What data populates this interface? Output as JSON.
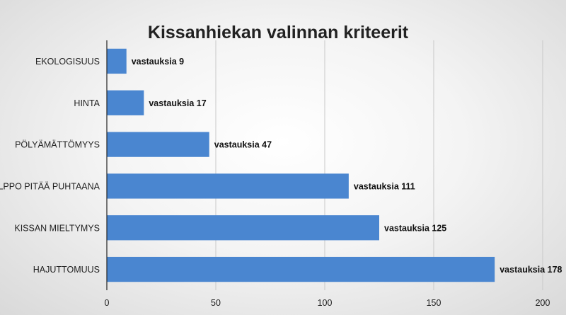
{
  "chart_data": {
    "type": "bar",
    "orientation": "horizontal",
    "title": "Kissanhiekan valinnan kriteerit",
    "categories": [
      "EKOLOGISUUS",
      "HINTA",
      "PÖLYÄMÄTTÖMYYS",
      "HELPPO PITÄÄ PUHTAANA",
      "KISSAN MIELTYMYS",
      "HAJUTTOMUUS"
    ],
    "values": [
      9,
      17,
      47,
      111,
      125,
      178
    ],
    "data_labels": [
      "vastauksia 9",
      "vastauksia 17",
      "vastauksia 47",
      "vastauksia 111",
      "vastauksia 125",
      "vastauksia 178"
    ],
    "xlim": [
      0,
      200
    ],
    "xticks": [
      0,
      50,
      100,
      150,
      200
    ],
    "xtick_labels": [
      "0",
      "50",
      "100",
      "150",
      "200"
    ],
    "grid": true,
    "bar_color": "#4a86d0",
    "legend": "none"
  }
}
